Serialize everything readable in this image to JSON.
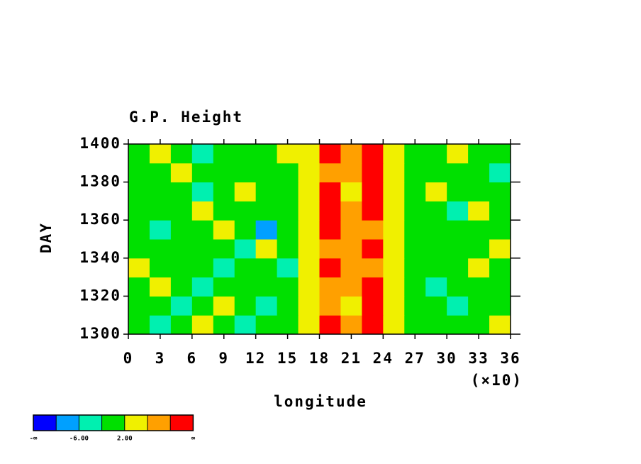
{
  "chart_data": {
    "type": "heatmap",
    "title": "G.P. Height",
    "xlabel": "longitude",
    "xscale_note": "(×10)",
    "ylabel": "DAY",
    "xlim": [
      0,
      36
    ],
    "ylim": [
      1300,
      1400
    ],
    "xticks": [
      0,
      3,
      6,
      9,
      12,
      15,
      18,
      21,
      24,
      27,
      30,
      33,
      36
    ],
    "yticks": [
      1300,
      1320,
      1340,
      1360,
      1380,
      1400
    ],
    "xbins": [
      0,
      2,
      4,
      6,
      8,
      10,
      12,
      14,
      16,
      18,
      20,
      22,
      24,
      26,
      28,
      30,
      32,
      34,
      36
    ],
    "ybins": [
      1300,
      1310,
      1320,
      1330,
      1340,
      1350,
      1360,
      1370,
      1380,
      1390,
      1400
    ],
    "z": [
      [
        1,
        -3,
        0,
        2,
        -1,
        -4,
        0,
        1,
        4,
        11,
        6,
        10,
        3,
        0,
        -2,
        1,
        0,
        2
      ],
      [
        -2,
        1,
        -4,
        0,
        3,
        -1,
        -3,
        0,
        3,
        9,
        5,
        11,
        4,
        -1,
        0,
        -3,
        1,
        -1
      ],
      [
        0,
        2,
        -1,
        -3,
        0,
        1,
        -2,
        -1,
        4,
        8,
        7,
        12,
        5,
        1,
        -3,
        0,
        -1,
        0
      ],
      [
        2,
        -1,
        1,
        0,
        -5,
        0,
        1,
        -3,
        3,
        10,
        6,
        9,
        3,
        0,
        1,
        -2,
        3,
        -1
      ],
      [
        -1,
        0,
        -2,
        1,
        0,
        -3,
        2,
        0,
        5,
        9,
        7,
        10,
        4,
        -2,
        0,
        1,
        -1,
        2
      ],
      [
        0,
        -3,
        1,
        -1,
        2,
        0,
        -7,
        1,
        4,
        11,
        8,
        9,
        4,
        0,
        -1,
        -2,
        0,
        1
      ],
      [
        1,
        0,
        -2,
        2,
        -1,
        -1,
        0,
        -2,
        3,
        10,
        6,
        11,
        3,
        1,
        0,
        -3,
        2,
        -1
      ],
      [
        -2,
        1,
        0,
        -3,
        0,
        2,
        -1,
        0,
        4,
        12,
        5,
        10,
        2,
        -1,
        2,
        0,
        -1,
        0
      ],
      [
        0,
        -1,
        3,
        0,
        -2,
        -1,
        1,
        -1,
        3,
        9,
        6,
        12,
        4,
        0,
        -2,
        1,
        0,
        -3
      ],
      [
        -1,
        2,
        -1,
        -4,
        1,
        0,
        -2,
        2,
        5,
        11,
        7,
        11,
        3,
        -1,
        0,
        2,
        -2,
        1
      ]
    ],
    "colorbar": {
      "levels": [
        -10,
        -6,
        -2,
        2,
        6,
        10
      ],
      "colors": [
        "#0000ff",
        "#00a0ff",
        "#00f0b0",
        "#00e000",
        "#f0f000",
        "#ffa000",
        "#ff0000"
      ],
      "end_labels": [
        "-∞",
        "∞"
      ],
      "ticks": [
        {
          "value": -6,
          "label": "-6.00"
        },
        {
          "value": 2,
          "label": "2.00"
        }
      ]
    }
  }
}
